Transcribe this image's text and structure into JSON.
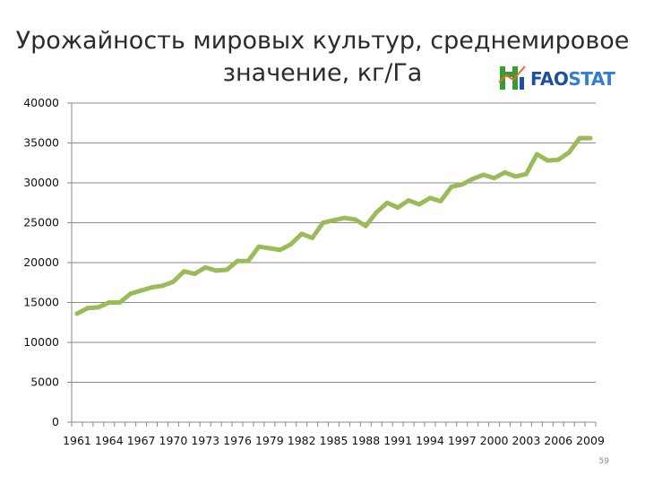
{
  "slide": {
    "title_line1": "Урожайность мировых культур, среднемировое",
    "title_line2": "значение, кг/Га",
    "logo_text_fao": "FAO",
    "logo_text_stat": "STAT",
    "page_number": "59"
  },
  "colors": {
    "series": "#9bbb59",
    "grid": "#8a8a8a",
    "logo_green": "#3a9a3a",
    "logo_blue": "#1f4fa0"
  },
  "chart_data": {
    "type": "line",
    "title": "Урожайность мировых культур, среднемировое значение, кг/Га",
    "xlabel": "",
    "ylabel": "",
    "ylim": [
      0,
      40000
    ],
    "yticks": [
      0,
      5000,
      10000,
      15000,
      20000,
      25000,
      30000,
      35000,
      40000
    ],
    "x_tick_labels": [
      "1961",
      "1964",
      "1967",
      "1970",
      "1973",
      "1976",
      "1979",
      "1982",
      "1985",
      "1988",
      "1991",
      "1994",
      "1997",
      "2000",
      "2003",
      "2006",
      "2009"
    ],
    "grid": true,
    "legend": "none",
    "x": [
      1961,
      1962,
      1963,
      1964,
      1965,
      1966,
      1967,
      1968,
      1969,
      1970,
      1971,
      1972,
      1973,
      1974,
      1975,
      1976,
      1977,
      1978,
      1979,
      1980,
      1981,
      1982,
      1983,
      1984,
      1985,
      1986,
      1987,
      1988,
      1989,
      1990,
      1991,
      1992,
      1993,
      1994,
      1995,
      1996,
      1997,
      1998,
      1999,
      2000,
      2001,
      2002,
      2003,
      2004,
      2005,
      2006,
      2007,
      2008,
      2009
    ],
    "series": [
      {
        "values": [
          13600,
          14300,
          14400,
          15000,
          15000,
          16100,
          16500,
          16900,
          17100,
          17600,
          18900,
          18600,
          19400,
          19000,
          19100,
          20200,
          20200,
          22000,
          21800,
          21600,
          22300,
          23600,
          23100,
          25000,
          25300,
          25600,
          25400,
          24600,
          26300,
          27500,
          26900,
          27800,
          27300,
          28100,
          27700,
          29500,
          29800,
          30500,
          31000,
          30600,
          31300,
          30800,
          31100,
          33600,
          32800,
          32900,
          33800,
          35600,
          35600
        ]
      }
    ]
  }
}
